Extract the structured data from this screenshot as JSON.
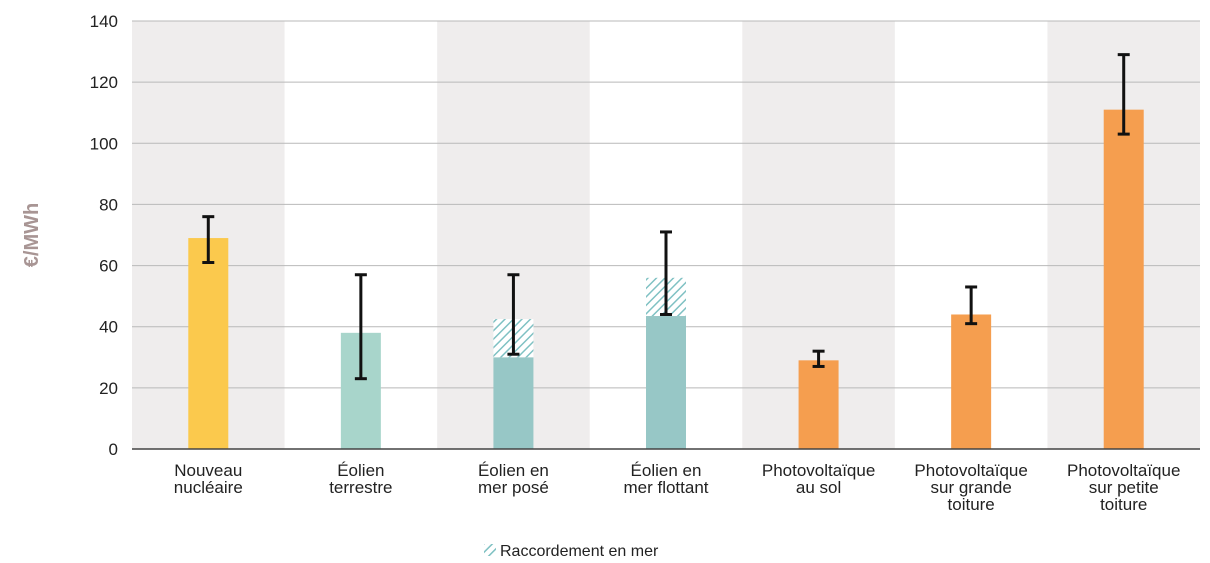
{
  "chart_data": {
    "type": "bar",
    "ylabel": "€/MWh",
    "ylim": [
      0,
      140
    ],
    "yticks": [
      0,
      20,
      40,
      60,
      80,
      100,
      120,
      140
    ],
    "grid": true,
    "categories": [
      [
        "Nouveau",
        "nucléaire"
      ],
      [
        "Éolien",
        "terrestre"
      ],
      [
        "Éolien en",
        "mer posé"
      ],
      [
        "Éolien en",
        "mer flottant"
      ],
      [
        "Photovoltaïque",
        "au sol"
      ],
      [
        "Photovoltaïque",
        "sur grande",
        "toiture"
      ],
      [
        "Photovoltaïque",
        "sur petite",
        "toiture"
      ]
    ],
    "values": [
      69,
      38,
      30,
      43.5,
      29,
      44,
      111
    ],
    "offshore_connection": [
      0,
      0,
      12.5,
      12.5,
      0,
      0,
      0
    ],
    "error_low": [
      61,
      23,
      31,
      44,
      27,
      41,
      103
    ],
    "error_high": [
      76,
      57,
      57,
      71,
      32,
      53,
      129
    ],
    "colors": [
      "#fbc94d",
      "#a8d5cb",
      "#97c7c6",
      "#97c7c6",
      "#f59e4f",
      "#f59e4f",
      "#f59e4f"
    ],
    "band_color": "#efeded",
    "legend": {
      "placement": "bottom-center",
      "entries": [
        {
          "name": "Raccordement en mer",
          "pattern": "hatch",
          "color": "#7fc1c3"
        }
      ]
    }
  }
}
